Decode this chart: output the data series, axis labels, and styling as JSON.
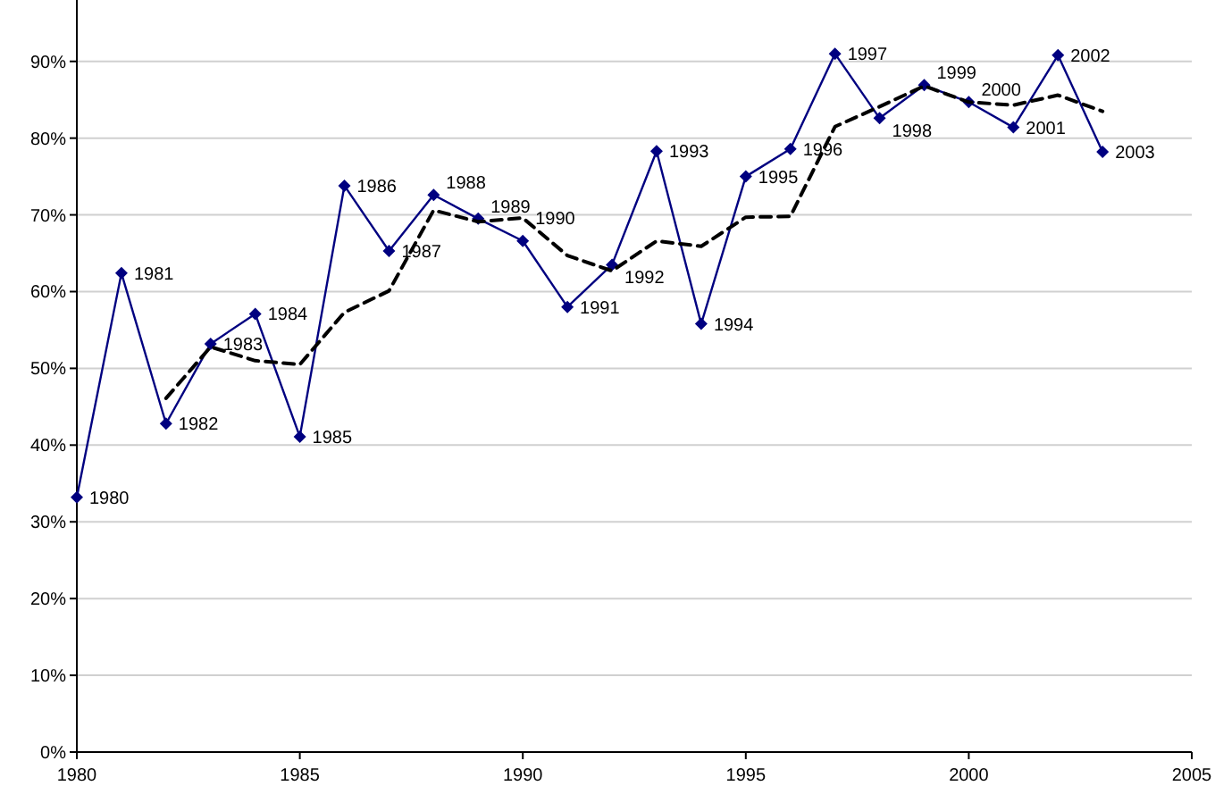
{
  "chart_data": {
    "type": "line",
    "ylim": [
      0,
      98
    ],
    "yticks": [
      {
        "value": 0,
        "label": "0%"
      },
      {
        "value": 10,
        "label": "10%"
      },
      {
        "value": 20,
        "label": "20%"
      },
      {
        "value": 30,
        "label": "30%"
      },
      {
        "value": 40,
        "label": "40%"
      },
      {
        "value": 50,
        "label": "50%"
      },
      {
        "value": 60,
        "label": "60%"
      },
      {
        "value": 70,
        "label": "70%"
      },
      {
        "value": 80,
        "label": "80%"
      },
      {
        "value": 90,
        "label": "90%"
      }
    ],
    "xlim": [
      1980,
      2005
    ],
    "xticks": [
      1980,
      1985,
      1990,
      1995,
      2000,
      2005
    ],
    "grid": "y",
    "series": [
      {
        "color": "#000080",
        "marker": "diamond",
        "line_style": "solid",
        "x": [
          1980,
          1981,
          1982,
          1983,
          1984,
          1985,
          1986,
          1987,
          1988,
          1989,
          1990,
          1991,
          1992,
          1993,
          1994,
          1995,
          1996,
          1997,
          1998,
          1999,
          2000,
          2001,
          2002,
          2003
        ],
        "values": [
          33.2,
          62.4,
          42.8,
          53.2,
          57.1,
          41.1,
          73.8,
          65.3,
          72.6,
          69.5,
          66.6,
          58.0,
          63.5,
          78.3,
          55.8,
          75.0,
          78.6,
          91.0,
          82.6,
          86.9,
          84.7,
          81.4,
          90.8,
          78.2
        ]
      },
      {
        "color": "#000000",
        "marker": "none",
        "line_style": "dashed",
        "x": [
          1982,
          1983,
          1984,
          1985,
          1986,
          1987,
          1988,
          1989,
          1990,
          1991,
          1992,
          1993,
          1994,
          1995,
          1996,
          1997,
          1998,
          1999,
          2000,
          2001,
          2002,
          2003
        ],
        "values": [
          46.1,
          52.8,
          51.0,
          50.5,
          57.3,
          60.1,
          70.6,
          69.1,
          69.6,
          64.7,
          62.7,
          66.6,
          65.9,
          69.7,
          69.8,
          81.5,
          84.1,
          86.8,
          84.7,
          84.3,
          85.6,
          83.5
        ]
      }
    ],
    "annotations": [
      {
        "text": "1980",
        "x": 1980,
        "y": 33.2
      },
      {
        "text": "1981",
        "x": 1981,
        "y": 62.4
      },
      {
        "text": "1982",
        "x": 1982,
        "y": 42.8
      },
      {
        "text": "1983",
        "x": 1983,
        "y": 53.2
      },
      {
        "text": "1984",
        "x": 1984,
        "y": 57.1
      },
      {
        "text": "1985",
        "x": 1985,
        "y": 41.1
      },
      {
        "text": "1986",
        "x": 1986,
        "y": 73.8
      },
      {
        "text": "1987",
        "x": 1987,
        "y": 65.3
      },
      {
        "text": "1988",
        "x": 1988,
        "y": 72.6
      },
      {
        "text": "1989",
        "x": 1989,
        "y": 69.5
      },
      {
        "text": "1990",
        "x": 1990,
        "y": 66.6
      },
      {
        "text": "1991",
        "x": 1991,
        "y": 58.0
      },
      {
        "text": "1992",
        "x": 1992,
        "y": 63.5
      },
      {
        "text": "1993",
        "x": 1993,
        "y": 78.3
      },
      {
        "text": "1994",
        "x": 1994,
        "y": 55.8
      },
      {
        "text": "1995",
        "x": 1995,
        "y": 75.0
      },
      {
        "text": "1996",
        "x": 1996,
        "y": 78.6
      },
      {
        "text": "1997",
        "x": 1997,
        "y": 91.0
      },
      {
        "text": "1998",
        "x": 1998,
        "y": 82.6
      },
      {
        "text": "1999",
        "x": 1999,
        "y": 86.9
      },
      {
        "text": "2000",
        "x": 2000,
        "y": 84.7
      },
      {
        "text": "2001",
        "x": 2001,
        "y": 81.4
      },
      {
        "text": "2002",
        "x": 2002,
        "y": 90.8
      },
      {
        "text": "2003",
        "x": 2003,
        "y": 78.2
      }
    ]
  }
}
